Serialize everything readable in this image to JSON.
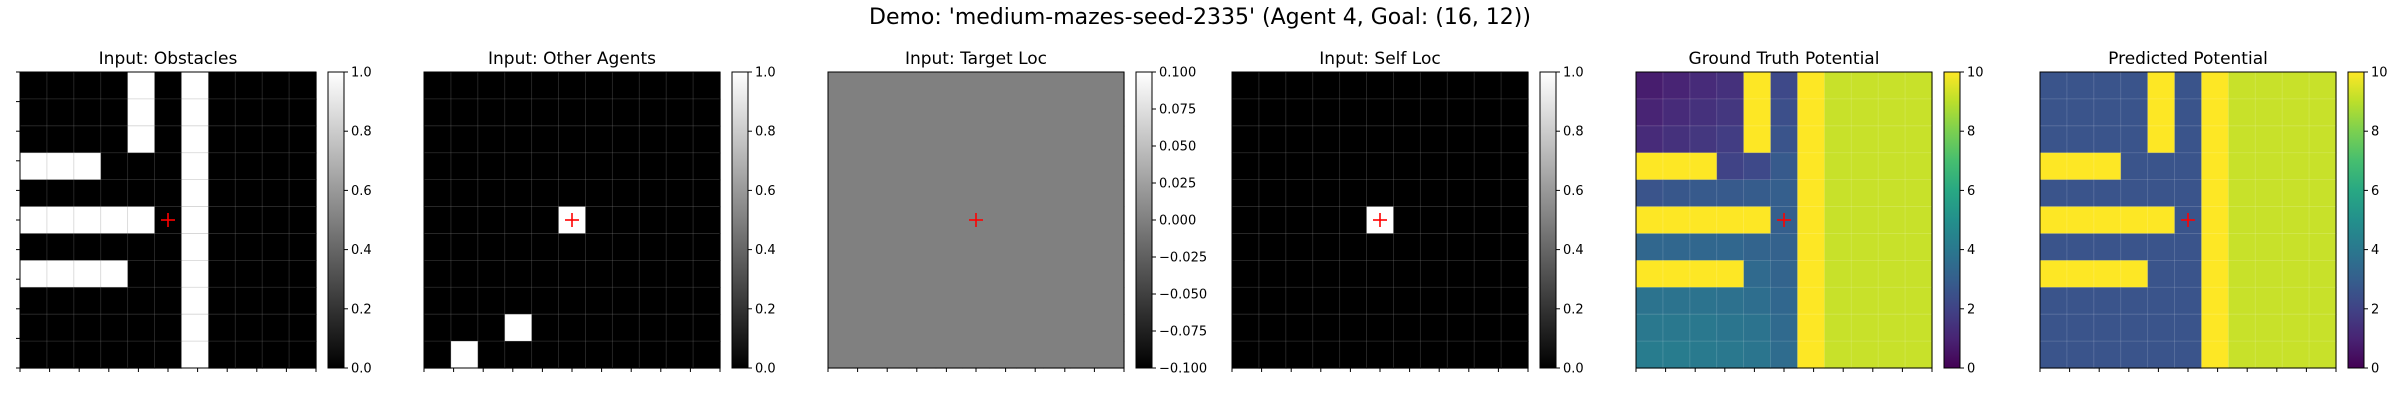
{
  "figure": {
    "title": "Demo: 'medium-mazes-seed-2335' (Agent 4, Goal: (16, 12))"
  },
  "chart_data": [
    {
      "type": "heatmap",
      "title": "Input: Obstacles",
      "grid_size": [
        11,
        11
      ],
      "colormap": "gray",
      "vmin": 0,
      "vmax": 1,
      "colorbar_ticks": [
        "0.0",
        "0.2",
        "0.4",
        "0.6",
        "0.8",
        "1.0"
      ],
      "marker": {
        "row": 5,
        "col": 5,
        "symbol": "+",
        "color": "#ff0000"
      },
      "cells": [
        [
          0,
          0,
          0,
          0,
          1,
          0,
          1,
          0,
          0,
          0,
          0
        ],
        [
          0,
          0,
          0,
          0,
          1,
          0,
          1,
          0,
          0,
          0,
          0
        ],
        [
          0,
          0,
          0,
          0,
          1,
          0,
          1,
          0,
          0,
          0,
          0
        ],
        [
          1,
          1,
          1,
          0,
          0,
          0,
          1,
          0,
          0,
          0,
          0
        ],
        [
          0,
          0,
          0,
          0,
          0,
          0,
          1,
          0,
          0,
          0,
          0
        ],
        [
          1,
          1,
          1,
          1,
          1,
          0,
          1,
          0,
          0,
          0,
          0
        ],
        [
          0,
          0,
          0,
          0,
          0,
          0,
          1,
          0,
          0,
          0,
          0
        ],
        [
          1,
          1,
          1,
          1,
          0,
          0,
          1,
          0,
          0,
          0,
          0
        ],
        [
          0,
          0,
          0,
          0,
          0,
          0,
          1,
          0,
          0,
          0,
          0
        ],
        [
          0,
          0,
          0,
          0,
          0,
          0,
          1,
          0,
          0,
          0,
          0
        ],
        [
          0,
          0,
          0,
          0,
          0,
          0,
          1,
          0,
          0,
          0,
          0
        ]
      ]
    },
    {
      "type": "heatmap",
      "title": "Input: Other Agents",
      "grid_size": [
        11,
        11
      ],
      "colormap": "gray",
      "vmin": 0,
      "vmax": 1,
      "colorbar_ticks": [
        "0.0",
        "0.2",
        "0.4",
        "0.6",
        "0.8",
        "1.0"
      ],
      "marker": {
        "row": 5,
        "col": 5,
        "symbol": "+",
        "color": "#ff0000"
      },
      "cells": [
        [
          0,
          0,
          0,
          0,
          0,
          0,
          0,
          0,
          0,
          0,
          0
        ],
        [
          0,
          0,
          0,
          0,
          0,
          0,
          0,
          0,
          0,
          0,
          0
        ],
        [
          0,
          0,
          0,
          0,
          0,
          0,
          0,
          0,
          0,
          0,
          0
        ],
        [
          0,
          0,
          0,
          0,
          0,
          0,
          0,
          0,
          0,
          0,
          0
        ],
        [
          0,
          0,
          0,
          0,
          0,
          0,
          0,
          0,
          0,
          0,
          0
        ],
        [
          0,
          0,
          0,
          0,
          0,
          1,
          0,
          0,
          0,
          0,
          0
        ],
        [
          0,
          0,
          0,
          0,
          0,
          0,
          0,
          0,
          0,
          0,
          0
        ],
        [
          0,
          0,
          0,
          0,
          0,
          0,
          0,
          0,
          0,
          0,
          0
        ],
        [
          0,
          0,
          0,
          0,
          0,
          0,
          0,
          0,
          0,
          0,
          0
        ],
        [
          0,
          0,
          0,
          1,
          0,
          0,
          0,
          0,
          0,
          0,
          0
        ],
        [
          0,
          1,
          0,
          0,
          0,
          0,
          0,
          0,
          0,
          0,
          0
        ]
      ]
    },
    {
      "type": "heatmap",
      "title": "Input: Target Loc",
      "grid_size": [
        11,
        11
      ],
      "colormap": "gray",
      "vmin": -0.1,
      "vmax": 0.1,
      "colorbar_ticks": [
        "−0.100",
        "−0.075",
        "−0.050",
        "−0.025",
        "0.000",
        "0.025",
        "0.050",
        "0.075",
        "0.100"
      ],
      "marker": {
        "row": 5,
        "col": 5,
        "symbol": "+",
        "color": "#ff0000"
      },
      "uniform_value": 0
    },
    {
      "type": "heatmap",
      "title": "Input: Self Loc",
      "grid_size": [
        11,
        11
      ],
      "colormap": "gray",
      "vmin": 0,
      "vmax": 1,
      "colorbar_ticks": [
        "0.0",
        "0.2",
        "0.4",
        "0.6",
        "0.8",
        "1.0"
      ],
      "marker": {
        "row": 5,
        "col": 5,
        "symbol": "+",
        "color": "#ff0000"
      },
      "cells": [
        [
          0,
          0,
          0,
          0,
          0,
          0,
          0,
          0,
          0,
          0,
          0
        ],
        [
          0,
          0,
          0,
          0,
          0,
          0,
          0,
          0,
          0,
          0,
          0
        ],
        [
          0,
          0,
          0,
          0,
          0,
          0,
          0,
          0,
          0,
          0,
          0
        ],
        [
          0,
          0,
          0,
          0,
          0,
          0,
          0,
          0,
          0,
          0,
          0
        ],
        [
          0,
          0,
          0,
          0,
          0,
          0,
          0,
          0,
          0,
          0,
          0
        ],
        [
          0,
          0,
          0,
          0,
          0,
          1,
          0,
          0,
          0,
          0,
          0
        ],
        [
          0,
          0,
          0,
          0,
          0,
          0,
          0,
          0,
          0,
          0,
          0
        ],
        [
          0,
          0,
          0,
          0,
          0,
          0,
          0,
          0,
          0,
          0,
          0
        ],
        [
          0,
          0,
          0,
          0,
          0,
          0,
          0,
          0,
          0,
          0,
          0
        ],
        [
          0,
          0,
          0,
          0,
          0,
          0,
          0,
          0,
          0,
          0,
          0
        ],
        [
          0,
          0,
          0,
          0,
          0,
          0,
          0,
          0,
          0,
          0,
          0
        ]
      ]
    },
    {
      "type": "heatmap",
      "title": "Ground Truth Potential",
      "grid_size": [
        11,
        11
      ],
      "colormap": "viridis",
      "vmin": 0,
      "vmax": 10,
      "colorbar_ticks": [
        "0",
        "2",
        "4",
        "6",
        "8",
        "10"
      ],
      "marker": {
        "row": 5,
        "col": 5,
        "symbol": "+",
        "color": "#ff0000"
      },
      "cells": [
        [
          0.8,
          1.0,
          1.2,
          1.4,
          10,
          2.2,
          10,
          9.2,
          9.2,
          9.2,
          9.2
        ],
        [
          1.0,
          1.2,
          1.4,
          1.6,
          10,
          2.4,
          10,
          9.2,
          9.2,
          9.2,
          9.2
        ],
        [
          1.2,
          1.4,
          1.6,
          1.8,
          10,
          2.6,
          10,
          9.2,
          9.2,
          9.2,
          9.2
        ],
        [
          10,
          10,
          10,
          2.0,
          2.2,
          2.8,
          10,
          9.2,
          9.2,
          9.2,
          9.2
        ],
        [
          2.6,
          2.7,
          2.8,
          2.8,
          2.9,
          3.0,
          10,
          9.2,
          9.2,
          9.2,
          9.2
        ],
        [
          10,
          10,
          10,
          10,
          10,
          3.0,
          10,
          9.2,
          9.2,
          9.2,
          9.2
        ],
        [
          3.3,
          3.3,
          3.3,
          3.3,
          3.2,
          3.1,
          10,
          9.2,
          9.2,
          9.2,
          9.2
        ],
        [
          10,
          10,
          10,
          10,
          3.4,
          3.2,
          10,
          9.2,
          9.2,
          9.2,
          9.2
        ],
        [
          3.8,
          3.8,
          3.8,
          3.7,
          3.6,
          3.3,
          10,
          9.2,
          9.2,
          9.2,
          9.2
        ],
        [
          4.0,
          4.0,
          4.0,
          3.9,
          3.8,
          3.4,
          10,
          9.2,
          9.2,
          9.2,
          9.2
        ],
        [
          4.2,
          4.2,
          4.1,
          4.0,
          3.9,
          3.5,
          10,
          9.2,
          9.2,
          9.2,
          9.2
        ]
      ]
    },
    {
      "type": "heatmap",
      "title": "Predicted Potential",
      "grid_size": [
        11,
        11
      ],
      "colormap": "viridis",
      "vmin": 0,
      "vmax": 10,
      "colorbar_ticks": [
        "0",
        "2",
        "4",
        "6",
        "8",
        "10"
      ],
      "marker": {
        "row": 5,
        "col": 5,
        "symbol": "+",
        "color": "#ff0000"
      },
      "cells": [
        [
          2.6,
          2.6,
          2.6,
          2.6,
          10,
          2.6,
          10,
          9.2,
          9.2,
          9.2,
          9.2
        ],
        [
          2.6,
          2.6,
          2.6,
          2.6,
          10,
          2.6,
          10,
          9.2,
          9.2,
          9.2,
          9.2
        ],
        [
          2.6,
          2.6,
          2.6,
          2.6,
          10,
          2.6,
          10,
          9.2,
          9.2,
          9.2,
          9.2
        ],
        [
          10,
          10,
          10,
          2.6,
          2.6,
          2.6,
          10,
          9.2,
          9.2,
          9.2,
          9.2
        ],
        [
          2.6,
          2.6,
          2.6,
          2.6,
          2.6,
          2.6,
          10,
          9.2,
          9.2,
          9.2,
          9.2
        ],
        [
          10,
          10,
          10,
          10,
          10,
          2.6,
          10,
          9.2,
          9.2,
          9.2,
          9.2
        ],
        [
          2.6,
          2.6,
          2.6,
          2.6,
          2.6,
          2.6,
          10,
          9.2,
          9.2,
          9.2,
          9.2
        ],
        [
          10,
          10,
          10,
          10,
          2.6,
          2.6,
          10,
          9.2,
          9.2,
          9.2,
          9.2
        ],
        [
          2.6,
          2.6,
          2.6,
          2.6,
          2.6,
          2.6,
          10,
          9.2,
          9.2,
          9.2,
          9.2
        ],
        [
          2.6,
          2.6,
          2.6,
          2.6,
          2.6,
          2.6,
          10,
          9.2,
          9.2,
          9.2,
          9.2
        ],
        [
          2.6,
          2.6,
          2.6,
          2.6,
          2.6,
          2.6,
          10,
          9.2,
          9.2,
          9.2,
          9.2
        ]
      ]
    }
  ]
}
